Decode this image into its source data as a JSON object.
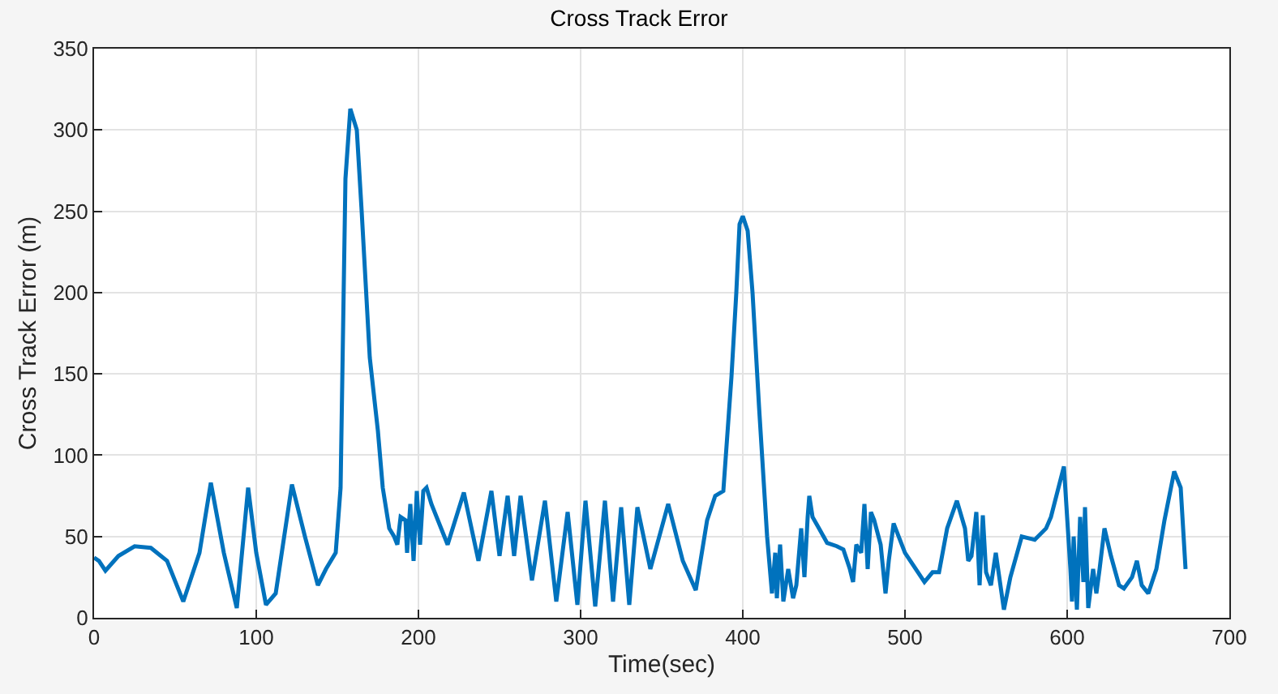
{
  "chart_data": {
    "type": "line",
    "title": "Cross Track Error",
    "xlabel": "Time(sec)",
    "ylabel": "Cross Track Error (m)",
    "x": [
      0,
      3,
      7,
      15,
      25,
      35,
      45,
      55,
      65,
      72,
      80,
      88,
      95,
      100,
      106,
      112,
      122,
      130,
      138,
      143,
      149,
      152,
      155,
      158,
      162,
      165,
      170,
      175,
      178,
      182,
      185,
      187,
      189,
      192,
      193,
      195,
      197,
      199,
      201,
      203,
      205,
      208,
      218,
      228,
      237,
      245,
      250,
      255,
      259,
      263,
      270,
      278,
      285,
      292,
      298,
      303,
      309,
      315,
      320,
      325,
      330,
      335,
      343,
      354,
      363,
      371,
      378,
      383,
      388,
      393,
      396,
      398,
      400,
      403,
      406,
      410,
      415,
      418,
      420,
      421,
      423,
      425,
      428,
      431,
      433,
      436,
      438,
      440,
      441,
      443,
      447,
      452,
      458,
      462,
      466,
      468,
      470,
      473,
      475,
      477,
      479,
      481,
      485,
      488,
      490,
      493,
      500,
      508,
      512,
      517,
      521,
      526,
      532,
      537,
      539,
      541,
      544,
      546,
      548,
      550,
      553,
      556,
      561,
      565,
      572,
      580,
      587,
      590,
      598,
      602,
      603,
      604,
      606,
      608,
      610,
      611,
      613,
      616,
      618,
      620,
      623,
      627,
      632,
      635,
      640,
      643,
      646,
      650,
      655,
      660,
      666,
      670,
      673
    ],
    "series": [
      {
        "color": "#0072bd",
        "values": [
          37,
          35,
          29,
          38,
          44,
          43,
          35,
          10,
          40,
          83,
          40,
          6,
          80,
          40,
          8,
          15,
          82,
          50,
          20,
          30,
          40,
          80,
          270,
          313,
          300,
          250,
          160,
          115,
          80,
          55,
          50,
          45,
          62,
          60,
          40,
          70,
          35,
          78,
          45,
          78,
          80,
          70,
          45,
          77,
          35,
          78,
          38,
          75,
          38,
          75,
          23,
          72,
          10,
          65,
          8,
          72,
          7,
          72,
          10,
          68,
          8,
          68,
          30,
          70,
          35,
          17,
          60,
          75,
          78,
          148,
          200,
          242,
          247,
          238,
          200,
          130,
          50,
          15,
          40,
          12,
          45,
          10,
          30,
          12,
          20,
          55,
          25,
          62,
          75,
          62,
          55,
          46,
          44,
          42,
          30,
          22,
          45,
          40,
          70,
          30,
          65,
          60,
          45,
          15,
          35,
          58,
          40,
          28,
          22,
          28,
          28,
          55,
          72,
          55,
          35,
          38,
          65,
          20,
          63,
          28,
          20,
          40,
          5,
          25,
          50,
          48,
          55,
          62,
          93,
          30,
          10,
          50,
          5,
          62,
          22,
          68,
          6,
          30,
          15,
          30,
          55,
          38,
          20,
          18,
          25,
          35,
          20,
          15,
          30,
          60,
          90,
          80,
          30
        ]
      }
    ],
    "xlim": [
      0,
      700
    ],
    "xticks": [
      0,
      100,
      200,
      300,
      400,
      500,
      600,
      700
    ],
    "ylim": [
      0,
      350
    ],
    "yticks": [
      0,
      50,
      100,
      150,
      200,
      250,
      300,
      350
    ],
    "grid": true,
    "line_style": "solid",
    "marker": "none"
  }
}
